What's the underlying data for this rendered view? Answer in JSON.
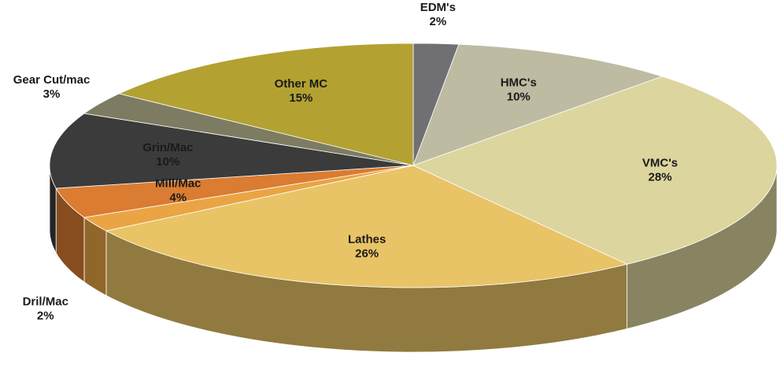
{
  "chart_data": {
    "type": "pie3d",
    "categories": [
      "EDM's",
      "HMC's",
      "VMC's",
      "Lathes",
      "Dril/Mac",
      "Mill/Mac",
      "Grin/Mac",
      "Gear Cut/mac",
      "Other MC"
    ],
    "values": [
      2,
      10,
      28,
      26,
      2,
      4,
      10,
      3,
      15
    ],
    "value_labels": [
      "2%",
      "10%",
      "28%",
      "26%",
      "2%",
      "4%",
      "10%",
      "3%",
      "15%"
    ],
    "colors": [
      "#707074",
      "#bdbba2",
      "#dcd59e",
      "#e9c466",
      "#eaa444",
      "#da7c32",
      "#3b3b3b",
      "#7d7c62",
      "#b3a232"
    ]
  }
}
